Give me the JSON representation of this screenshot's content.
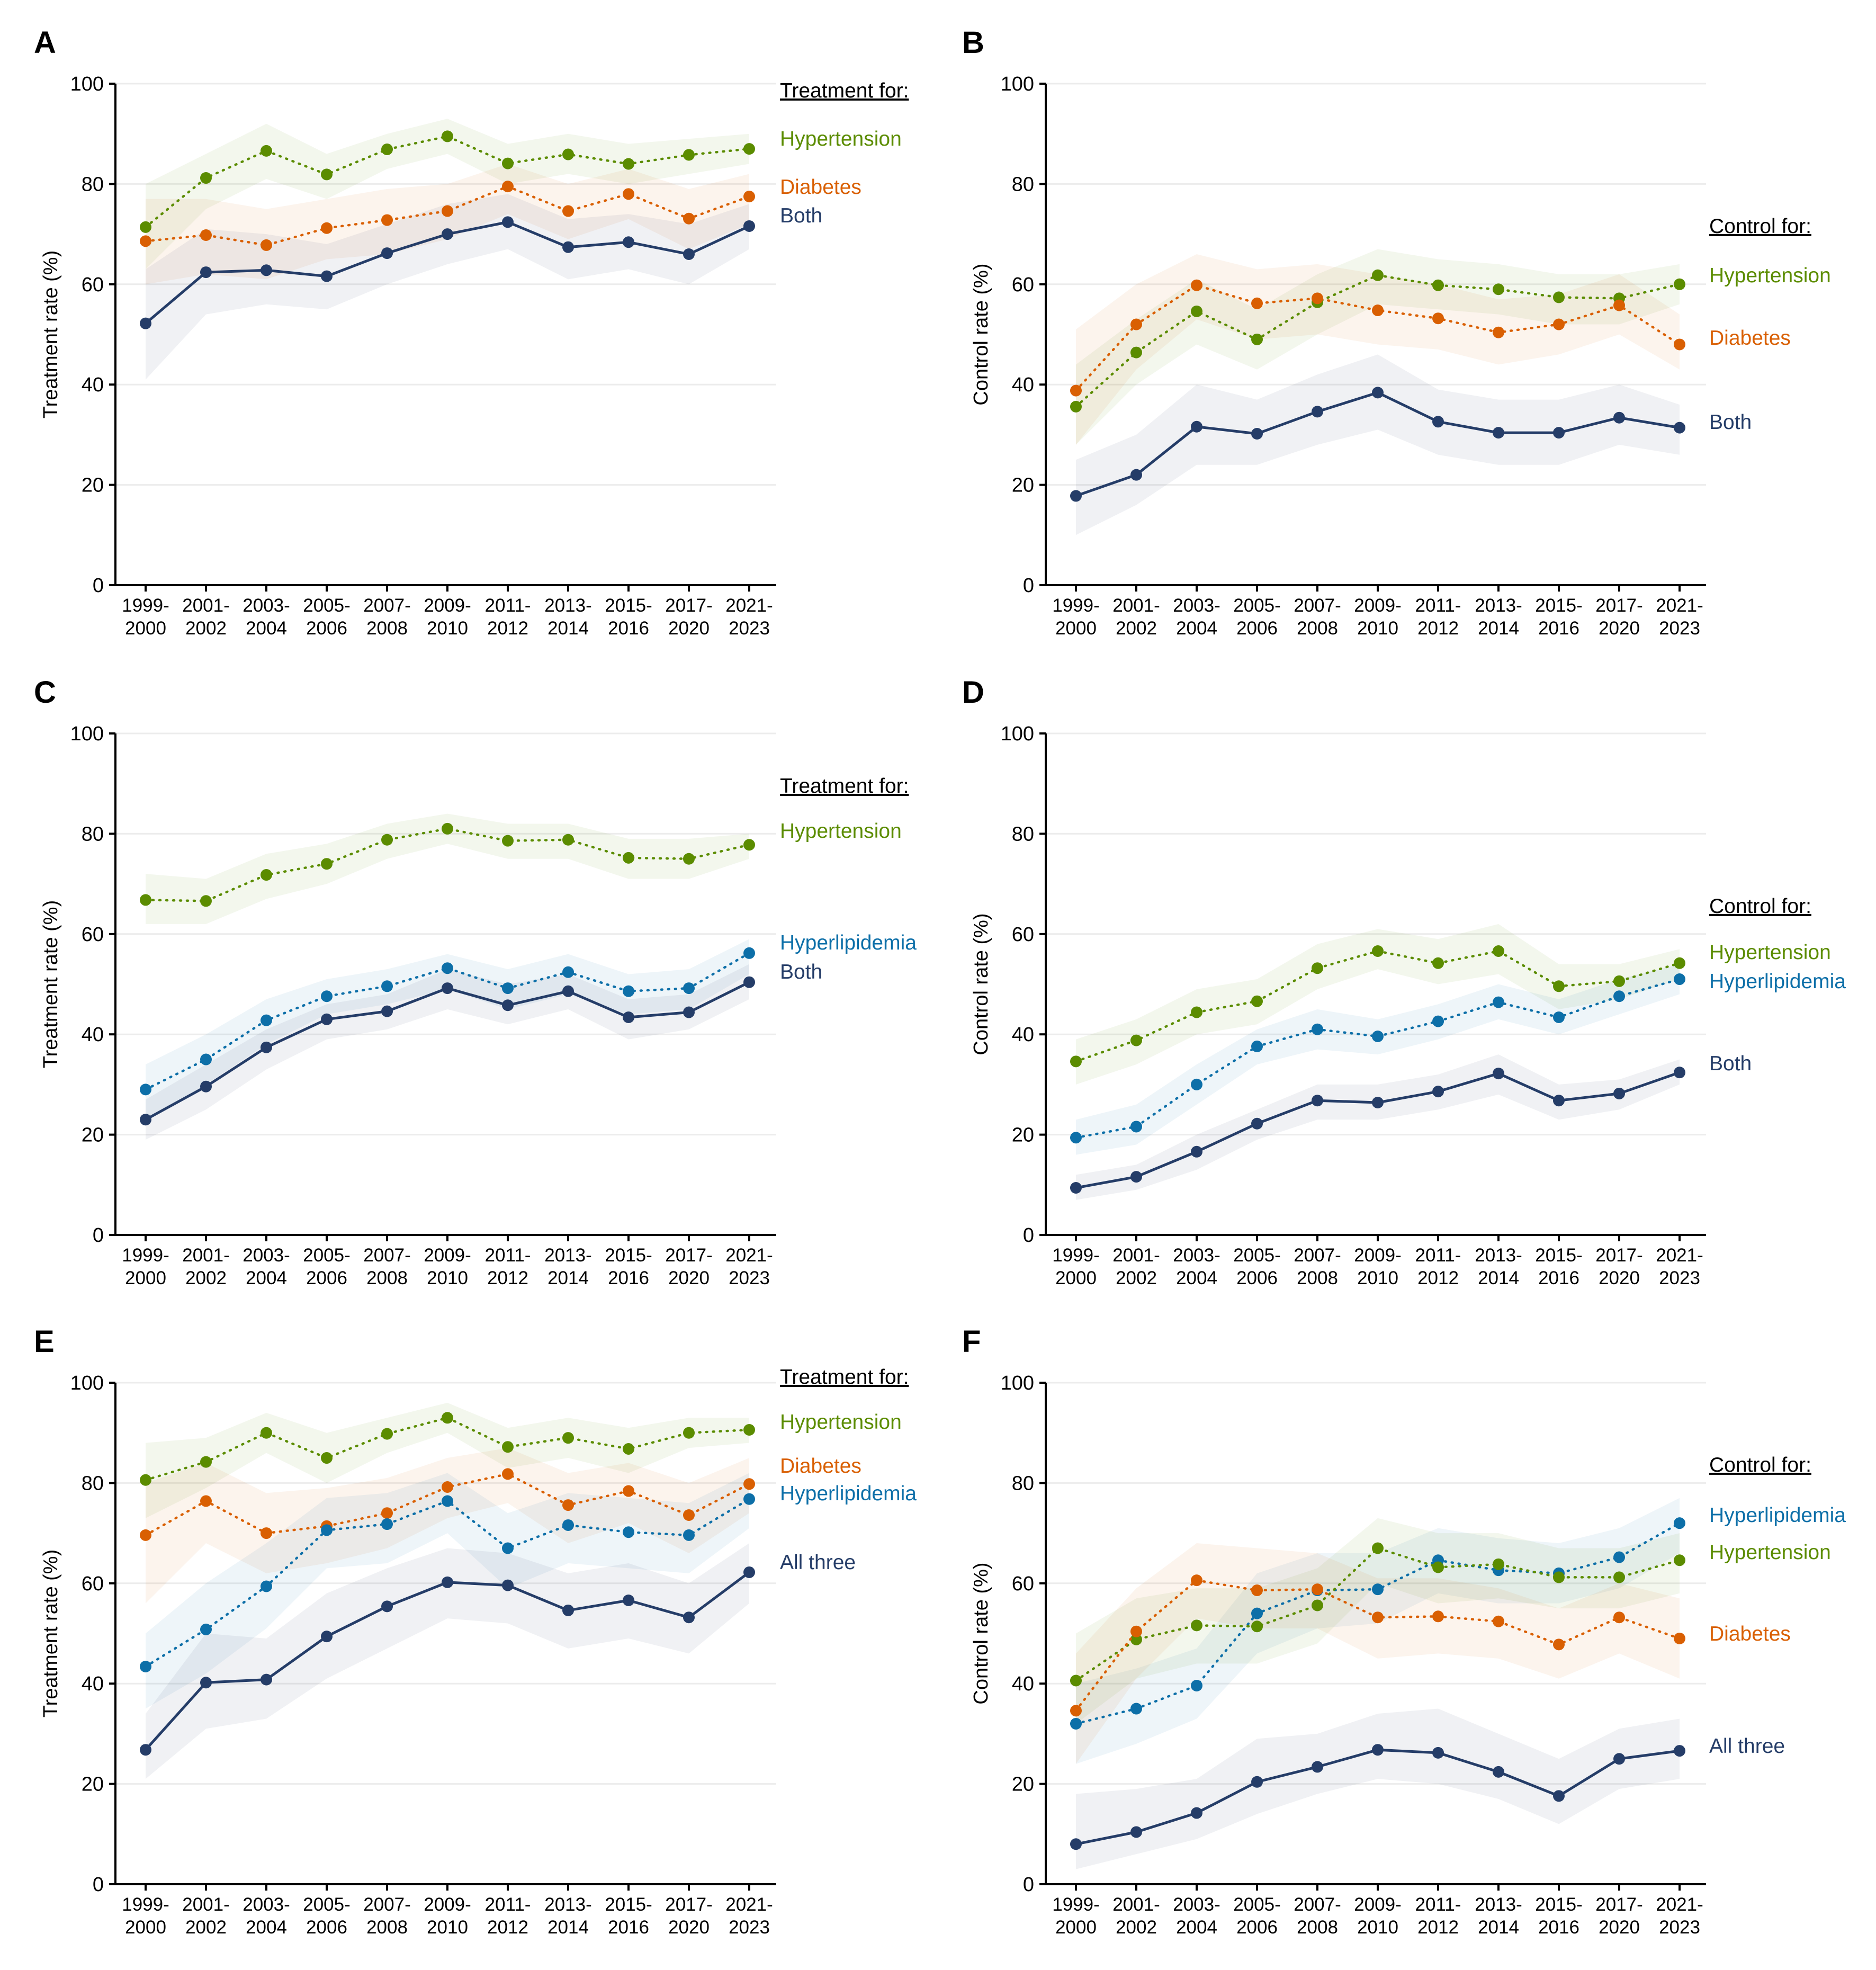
{
  "chart_data": [
    {
      "panel": "A",
      "type": "line",
      "ylabel": "Treatment rate (%)",
      "ylim": [
        0,
        100
      ],
      "yticks": [
        0,
        20,
        40,
        60,
        80,
        100
      ],
      "categories": [
        "1999-2000",
        "2001-2002",
        "2003-2004",
        "2005-2006",
        "2007-2008",
        "2009-2010",
        "2011-2012",
        "2013-2014",
        "2015-2016",
        "2017-2020",
        "2021-2023"
      ],
      "legend_title": "Treatment for:",
      "series": [
        {
          "name": "Hypertension",
          "color": "#5b8c00",
          "style": "dotted",
          "values": [
            71.4,
            81.2,
            86.6,
            81.9,
            86.9,
            89.5,
            84.1,
            85.9,
            84.0,
            85.8,
            87.0
          ],
          "lower": [
            63,
            75,
            81,
            77,
            83,
            86,
            80,
            82,
            80,
            82,
            84
          ],
          "upper": [
            80,
            86,
            92,
            86,
            90,
            93,
            88,
            90,
            88,
            89,
            90
          ]
        },
        {
          "name": "Diabetes",
          "color": "#d95f02",
          "style": "dotted",
          "values": [
            68.6,
            69.8,
            67.8,
            71.2,
            72.8,
            74.6,
            79.5,
            74.6,
            78.0,
            73.1,
            77.5
          ],
          "lower": [
            60,
            62,
            61,
            65,
            66,
            69,
            74,
            69,
            73,
            67,
            72
          ],
          "upper": [
            77,
            77,
            75,
            77,
            79,
            80,
            84,
            80,
            83,
            79,
            82
          ]
        },
        {
          "name": "Both",
          "color": "#253d68",
          "style": "solid",
          "values": [
            52.2,
            62.4,
            62.8,
            61.6,
            66.2,
            70.0,
            72.4,
            67.4,
            68.4,
            66.0,
            71.6
          ],
          "lower": [
            41,
            54,
            56,
            55,
            60,
            64,
            67,
            61,
            63,
            60,
            67
          ],
          "upper": [
            63,
            71,
            70,
            68,
            72,
            76,
            78,
            73,
            74,
            72,
            76
          ]
        }
      ]
    },
    {
      "panel": "B",
      "type": "line",
      "ylabel": "Control rate (%)",
      "ylim": [
        0,
        100
      ],
      "yticks": [
        0,
        20,
        40,
        60,
        80,
        100
      ],
      "categories": [
        "1999-2000",
        "2001-2002",
        "2003-2004",
        "2005-2006",
        "2007-2008",
        "2009-2010",
        "2011-2012",
        "2013-2014",
        "2015-2016",
        "2017-2020",
        "2021-2023"
      ],
      "legend_title": "Control for:",
      "series": [
        {
          "name": "Hypertension",
          "color": "#5b8c00",
          "style": "dotted",
          "values": [
            35.6,
            46.4,
            54.6,
            49.0,
            56.4,
            61.8,
            59.8,
            59.0,
            57.4,
            57.2,
            60.0
          ],
          "lower": [
            28,
            40,
            48,
            43,
            50,
            56,
            55,
            54,
            52,
            52,
            56
          ],
          "upper": [
            44,
            53,
            61,
            55,
            62,
            67,
            65,
            64,
            62,
            62,
            64
          ]
        },
        {
          "name": "Diabetes",
          "color": "#d95f02",
          "style": "dotted",
          "values": [
            38.8,
            52.0,
            59.8,
            56.2,
            57.2,
            54.8,
            53.2,
            50.4,
            52.0,
            55.8,
            48.0
          ],
          "lower": [
            28,
            43,
            53,
            49,
            50,
            48,
            47,
            44,
            46,
            50,
            43
          ],
          "upper": [
            51,
            60,
            66,
            63,
            64,
            62,
            60,
            57,
            58,
            62,
            54
          ]
        },
        {
          "name": "Both",
          "color": "#253d68",
          "style": "solid",
          "values": [
            17.8,
            22.0,
            31.6,
            30.2,
            34.6,
            38.4,
            32.6,
            30.4,
            30.4,
            33.4,
            31.4
          ],
          "lower": [
            10,
            16,
            24,
            24,
            28,
            31,
            26,
            24,
            24,
            28,
            26
          ],
          "upper": [
            25,
            30,
            40,
            37,
            42,
            46,
            39,
            37,
            37,
            40,
            36
          ]
        }
      ]
    },
    {
      "panel": "C",
      "type": "line",
      "ylabel": "Treatment rate (%)",
      "ylim": [
        0,
        100
      ],
      "yticks": [
        0,
        20,
        40,
        60,
        80,
        100
      ],
      "categories": [
        "1999-2000",
        "2001-2002",
        "2003-2004",
        "2005-2006",
        "2007-2008",
        "2009-2010",
        "2011-2012",
        "2013-2014",
        "2015-2016",
        "2017-2020",
        "2021-2023"
      ],
      "legend_title": "Treatment for:",
      "series": [
        {
          "name": "Hypertension",
          "color": "#5b8c00",
          "style": "dotted",
          "values": [
            66.8,
            66.6,
            71.8,
            74.0,
            78.8,
            81.0,
            78.6,
            78.8,
            75.2,
            75.0,
            77.8
          ],
          "lower": [
            62,
            62,
            67,
            70,
            75,
            78,
            75,
            75,
            71,
            71,
            75
          ],
          "upper": [
            72,
            71,
            76,
            78,
            82,
            84,
            82,
            82,
            79,
            79,
            80
          ]
        },
        {
          "name": "Hyperlipidemia",
          "color": "#0d6fa8",
          "style": "dotted",
          "values": [
            29.0,
            35.0,
            42.8,
            47.6,
            49.6,
            53.2,
            49.2,
            52.4,
            48.6,
            49.2,
            56.2
          ],
          "lower": [
            23,
            30,
            38,
            44,
            46,
            49,
            45,
            48,
            44,
            45,
            52
          ],
          "upper": [
            34,
            40,
            47,
            51,
            53,
            56,
            53,
            56,
            52,
            53,
            59
          ]
        },
        {
          "name": "Both",
          "color": "#253d68",
          "style": "solid",
          "values": [
            23.0,
            29.6,
            37.4,
            43.0,
            44.6,
            49.2,
            45.8,
            48.6,
            43.4,
            44.4,
            50.4
          ],
          "lower": [
            19,
            25,
            33,
            39,
            41,
            45,
            42,
            45,
            39,
            41,
            47
          ],
          "upper": [
            27,
            34,
            41,
            46,
            48,
            53,
            50,
            52,
            47,
            48,
            54
          ]
        }
      ]
    },
    {
      "panel": "D",
      "type": "line",
      "ylabel": "Control rate (%)",
      "ylim": [
        0,
        100
      ],
      "yticks": [
        0,
        20,
        40,
        60,
        80,
        100
      ],
      "categories": [
        "1999-2000",
        "2001-2002",
        "2003-2004",
        "2005-2006",
        "2007-2008",
        "2009-2010",
        "2011-2012",
        "2013-2014",
        "2015-2016",
        "2017-2020",
        "2021-2023"
      ],
      "legend_title": "Control for:",
      "series": [
        {
          "name": "Hypertension",
          "color": "#5b8c00",
          "style": "dotted",
          "values": [
            34.6,
            38.8,
            44.4,
            46.6,
            53.2,
            56.6,
            54.2,
            56.6,
            49.6,
            50.6,
            54.2
          ],
          "lower": [
            30,
            34,
            40,
            42,
            49,
            53,
            50,
            52,
            45,
            47,
            51
          ],
          "upper": [
            39,
            43,
            49,
            51,
            58,
            61,
            59,
            62,
            54,
            54,
            57
          ]
        },
        {
          "name": "Hyperlipidemia",
          "color": "#0d6fa8",
          "style": "dotted",
          "values": [
            19.4,
            21.6,
            30.0,
            37.6,
            41.0,
            39.6,
            42.6,
            46.4,
            43.4,
            47.6,
            51.0
          ],
          "lower": [
            16,
            18,
            26,
            34,
            37,
            36,
            39,
            43,
            40,
            44,
            48
          ],
          "upper": [
            23,
            26,
            34,
            41,
            45,
            43,
            46,
            50,
            47,
            51,
            54
          ]
        },
        {
          "name": "Both",
          "color": "#253d68",
          "style": "solid",
          "values": [
            9.4,
            11.6,
            16.6,
            22.2,
            26.8,
            26.4,
            28.6,
            32.2,
            26.8,
            28.2,
            32.4
          ],
          "lower": [
            7,
            9,
            13,
            19,
            23,
            23,
            25,
            28,
            23,
            25,
            30
          ],
          "upper": [
            12,
            14,
            20,
            25,
            30,
            30,
            32,
            36,
            30,
            31,
            35
          ]
        }
      ]
    },
    {
      "panel": "E",
      "type": "line",
      "ylabel": "Treatment rate (%)",
      "ylim": [
        0,
        100
      ],
      "yticks": [
        0,
        20,
        40,
        60,
        80,
        100
      ],
      "categories": [
        "1999-2000",
        "2001-2002",
        "2003-2004",
        "2005-2006",
        "2007-2008",
        "2009-2010",
        "2011-2012",
        "2013-2014",
        "2015-2016",
        "2017-2020",
        "2021-2023"
      ],
      "legend_title": "Treatment for:",
      "series": [
        {
          "name": "Hypertension",
          "color": "#5b8c00",
          "style": "dotted",
          "values": [
            80.6,
            84.2,
            90.0,
            85.0,
            89.8,
            93.0,
            87.2,
            89.0,
            86.8,
            90.0,
            90.6
          ],
          "lower": [
            73,
            79,
            86,
            80,
            86,
            90,
            83,
            85,
            82,
            87,
            88
          ],
          "upper": [
            88,
            89,
            94,
            90,
            93,
            96,
            91,
            93,
            91,
            93,
            93
          ]
        },
        {
          "name": "Diabetes",
          "color": "#d95f02",
          "style": "dotted",
          "values": [
            69.6,
            76.4,
            70.0,
            71.4,
            74.0,
            79.2,
            81.8,
            75.6,
            78.4,
            73.6,
            79.8
          ],
          "lower": [
            56,
            68,
            62,
            64,
            67,
            73,
            76,
            68,
            72,
            66,
            74
          ],
          "upper": [
            80,
            84,
            78,
            79,
            81,
            85,
            87,
            82,
            84,
            80,
            85
          ]
        },
        {
          "name": "Hyperlipidemia",
          "color": "#0d6fa8",
          "style": "dotted",
          "values": [
            43.4,
            50.8,
            59.4,
            70.6,
            71.8,
            76.4,
            67.0,
            71.6,
            70.2,
            69.6,
            76.8
          ],
          "lower": [
            35,
            42,
            51,
            63,
            64,
            70,
            59,
            64,
            63,
            62,
            71
          ],
          "upper": [
            50,
            60,
            68,
            77,
            78,
            82,
            74,
            78,
            77,
            76,
            82
          ]
        },
        {
          "name": "All three",
          "color": "#253d68",
          "style": "solid",
          "values": [
            26.8,
            40.2,
            40.8,
            49.4,
            55.4,
            60.2,
            59.6,
            54.6,
            56.6,
            53.2,
            62.2
          ],
          "lower": [
            21,
            31,
            33,
            41,
            47,
            53,
            52,
            47,
            49,
            46,
            56
          ],
          "upper": [
            34,
            50,
            49,
            58,
            63,
            67,
            66,
            62,
            64,
            60,
            68
          ]
        }
      ]
    },
    {
      "panel": "F",
      "type": "line",
      "ylabel": "Control rate (%)",
      "ylim": [
        0,
        100
      ],
      "yticks": [
        0,
        20,
        40,
        60,
        80,
        100
      ],
      "categories": [
        "1999-2000",
        "2001-2002",
        "2003-2004",
        "2005-2006",
        "2007-2008",
        "2009-2010",
        "2011-2012",
        "2013-2014",
        "2015-2016",
        "2017-2020",
        "2021-2023"
      ],
      "legend_title": "Control for:",
      "series": [
        {
          "name": "Hyperlipidemia",
          "color": "#0d6fa8",
          "style": "dotted",
          "values": [
            32.0,
            35.0,
            39.6,
            54.0,
            58.6,
            58.8,
            64.6,
            62.6,
            62.0,
            65.2,
            72.0
          ],
          "lower": [
            24,
            28,
            33,
            46,
            51,
            52,
            58,
            56,
            56,
            59,
            66
          ],
          "upper": [
            40,
            43,
            47,
            62,
            66,
            66,
            71,
            69,
            68,
            71,
            77
          ]
        },
        {
          "name": "Hypertension",
          "color": "#5b8c00",
          "style": "dotted",
          "values": [
            40.6,
            48.8,
            51.6,
            51.4,
            55.6,
            67.0,
            63.2,
            63.8,
            61.2,
            61.2,
            64.6
          ],
          "lower": [
            32,
            41,
            44,
            44,
            48,
            60,
            56,
            57,
            55,
            55,
            58
          ],
          "upper": [
            50,
            57,
            59,
            59,
            63,
            73,
            70,
            70,
            67,
            67,
            70
          ]
        },
        {
          "name": "Diabetes",
          "color": "#d95f02",
          "style": "dotted",
          "values": [
            34.6,
            50.4,
            60.6,
            58.6,
            58.8,
            53.2,
            53.4,
            52.4,
            47.8,
            53.2,
            49.0
          ],
          "lower": [
            24,
            41,
            53,
            51,
            51,
            45,
            46,
            45,
            41,
            46,
            41
          ],
          "upper": [
            46,
            59,
            68,
            67,
            66,
            61,
            61,
            59,
            55,
            60,
            57
          ]
        },
        {
          "name": "All three",
          "color": "#253d68",
          "style": "solid",
          "values": [
            8.0,
            10.4,
            14.2,
            20.4,
            23.4,
            26.8,
            26.2,
            22.4,
            17.6,
            25.0,
            26.6
          ],
          "lower": [
            3,
            6,
            9,
            14,
            18,
            21,
            20,
            17,
            12,
            19,
            21
          ],
          "upper": [
            18,
            19,
            21,
            29,
            30,
            34,
            35,
            30,
            25,
            31,
            33
          ]
        }
      ]
    }
  ]
}
